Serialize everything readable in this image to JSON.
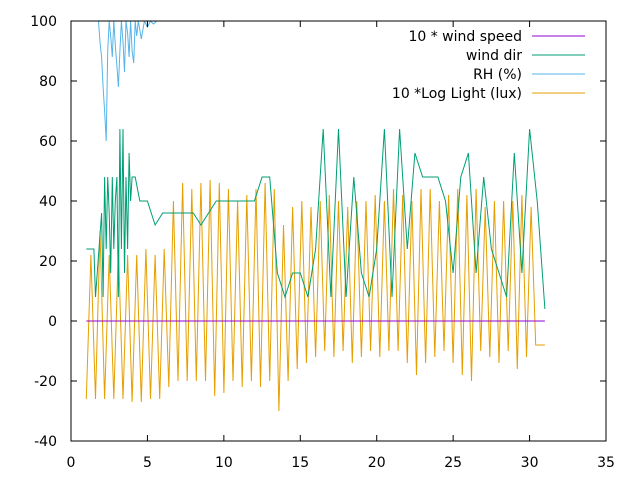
{
  "chart_data": {
    "type": "line",
    "xlim": [
      0,
      35
    ],
    "ylim": [
      -40,
      100
    ],
    "x_ticks": [
      "0",
      "5",
      "10",
      "15",
      "20",
      "25",
      "30",
      "35"
    ],
    "y_ticks": [
      "-40",
      "-20",
      "0",
      "20",
      "40",
      "60",
      "80",
      "100"
    ],
    "x_tick_values": [
      0,
      5,
      10,
      15,
      20,
      25,
      30,
      35
    ],
    "y_tick_values": [
      -40,
      -20,
      0,
      20,
      40,
      60,
      80,
      100
    ],
    "grid": false,
    "legend_position": "top-right",
    "series": [
      {
        "name": "10 * wind speed",
        "color": "#9400d3",
        "x": [
          1,
          31
        ],
        "y": [
          0,
          0
        ]
      },
      {
        "name": "wind dir",
        "color": "#009e73",
        "x": [
          1,
          1.5,
          1.6,
          2.0,
          2.1,
          2.2,
          2.3,
          2.4,
          2.5,
          2.6,
          2.7,
          2.8,
          2.9,
          3.0,
          3.1,
          3.2,
          3.3,
          3.4,
          3.5,
          3.6,
          3.7,
          3.8,
          3.9,
          4.0,
          4.2,
          4.5,
          5.0,
          5.5,
          6.0,
          6.5,
          7.0,
          8.0,
          8.5,
          9.0,
          9.5,
          10.0,
          10.5,
          11.0,
          11.5,
          12.0,
          12.5,
          13.0,
          13.5,
          14.0,
          14.5,
          15.0,
          15.5,
          16.0,
          16.5,
          17.0,
          17.5,
          18.0,
          18.5,
          19.0,
          19.5,
          20.0,
          20.5,
          21.0,
          21.5,
          22.0,
          22.5,
          23.0,
          23.5,
          24.0,
          24.5,
          25.0,
          25.5,
          26.0,
          26.5,
          27.0,
          27.5,
          28.0,
          28.5,
          29.0,
          29.5,
          30.0,
          30.5,
          31.0
        ],
        "y": [
          24,
          24,
          8,
          36,
          8,
          48,
          24,
          48,
          36,
          16,
          48,
          24,
          40,
          48,
          8,
          64,
          24,
          64,
          16,
          48,
          24,
          56,
          40,
          48,
          48,
          40,
          40,
          32,
          36,
          36,
          36,
          36,
          32,
          36,
          40,
          40,
          40,
          40,
          40,
          40,
          48,
          48,
          16,
          8,
          16,
          16,
          8,
          24,
          64,
          8,
          64,
          8,
          48,
          16,
          8,
          24,
          64,
          8,
          64,
          24,
          56,
          48,
          48,
          48,
          40,
          16,
          48,
          56,
          16,
          48,
          24,
          16,
          8,
          56,
          16,
          64,
          40,
          4
        ]
      },
      {
        "name": "RH (%)",
        "color": "#56b4e9",
        "x": [
          1.8,
          1.9,
          2.0,
          2.1,
          2.2,
          2.3,
          2.4,
          2.5,
          2.6,
          2.7,
          2.8,
          2.9,
          3.0,
          3.1,
          3.2,
          3.3,
          3.4,
          3.5,
          3.6,
          3.7,
          3.8,
          3.9,
          4.0,
          4.1,
          4.2,
          4.3,
          4.4,
          4.6,
          4.8,
          5.0,
          5.2,
          5.4,
          5.6
        ],
        "y": [
          100,
          93,
          88,
          78,
          70,
          60,
          90,
          100,
          95,
          88,
          100,
          92,
          85,
          78,
          90,
          100,
          93,
          83,
          100,
          96,
          88,
          100,
          90,
          86,
          100,
          95,
          100,
          94,
          100,
          98,
          100,
          99,
          100
        ]
      },
      {
        "name": "10 *Log Light (lux)",
        "color": "#e69f00",
        "x": [
          1.0,
          1.3,
          1.6,
          1.9,
          2.2,
          2.5,
          2.8,
          3.1,
          3.4,
          3.7,
          4.0,
          4.3,
          4.6,
          4.9,
          5.2,
          5.5,
          5.8,
          6.1,
          6.4,
          6.7,
          7.0,
          7.3,
          7.6,
          7.9,
          8.2,
          8.5,
          8.8,
          9.1,
          9.4,
          9.7,
          10.0,
          10.3,
          10.6,
          10.9,
          11.2,
          11.5,
          11.8,
          12.1,
          12.4,
          12.7,
          13.0,
          13.3,
          13.6,
          13.9,
          14.2,
          14.5,
          14.8,
          15.1,
          15.4,
          15.7,
          16.0,
          16.3,
          16.6,
          16.9,
          17.2,
          17.5,
          17.8,
          18.1,
          18.4,
          18.7,
          19.0,
          19.3,
          19.6,
          19.9,
          20.2,
          20.5,
          20.8,
          21.1,
          21.4,
          21.7,
          22.0,
          22.3,
          22.6,
          22.9,
          23.2,
          23.5,
          23.8,
          24.1,
          24.4,
          24.7,
          25.0,
          25.3,
          25.6,
          25.9,
          26.2,
          26.5,
          26.8,
          27.1,
          27.4,
          27.7,
          28.0,
          28.3,
          28.6,
          28.9,
          29.2,
          29.5,
          29.8,
          30.1,
          30.4,
          30.7,
          31.0
        ],
        "y": [
          -26,
          22,
          -26,
          30,
          -26,
          22,
          -26,
          24,
          -26,
          22,
          -27,
          22,
          -27,
          24,
          -26,
          22,
          -26,
          24,
          -22,
          40,
          -20,
          46,
          -20,
          44,
          -20,
          46,
          -20,
          47,
          -25,
          46,
          -24,
          44,
          -20,
          40,
          -22,
          42,
          -20,
          44,
          -22,
          46,
          -20,
          44,
          -30,
          32,
          -20,
          38,
          -16,
          40,
          -14,
          38,
          -12,
          40,
          -10,
          42,
          -12,
          40,
          -10,
          38,
          -14,
          40,
          -12,
          40,
          -10,
          42,
          -12,
          40,
          -10,
          44,
          -10,
          42,
          -14,
          40,
          -18,
          44,
          -14,
          44,
          -12,
          40,
          -10,
          42,
          -14,
          44,
          -18,
          42,
          -20,
          44,
          -10,
          38,
          -12,
          40,
          -14,
          40,
          -10,
          40,
          -16,
          42,
          -12,
          38,
          -8,
          -8,
          -8
        ]
      }
    ]
  }
}
